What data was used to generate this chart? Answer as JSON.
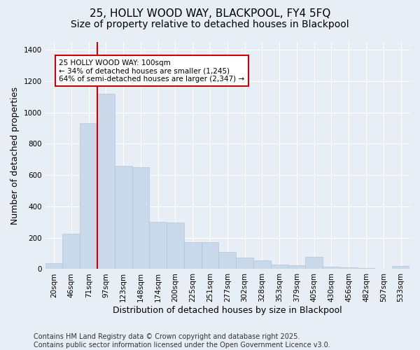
{
  "title_line1": "25, HOLLY WOOD WAY, BLACKPOOL, FY4 5FQ",
  "title_line2": "Size of property relative to detached houses in Blackpool",
  "xlabel": "Distribution of detached houses by size in Blackpool",
  "ylabel": "Number of detached properties",
  "categories": [
    "20sqm",
    "46sqm",
    "71sqm",
    "97sqm",
    "123sqm",
    "148sqm",
    "174sqm",
    "200sqm",
    "225sqm",
    "251sqm",
    "277sqm",
    "302sqm",
    "328sqm",
    "353sqm",
    "379sqm",
    "405sqm",
    "430sqm",
    "456sqm",
    "482sqm",
    "507sqm",
    "533sqm"
  ],
  "values": [
    40,
    225,
    930,
    1120,
    660,
    650,
    300,
    295,
    170,
    170,
    110,
    75,
    55,
    30,
    25,
    80,
    15,
    12,
    5,
    0,
    18
  ],
  "bar_color": "#c9d9ea",
  "bar_edge_color": "#b0c4d8",
  "vline_index": 3,
  "vline_color": "#cc0000",
  "annotation_text": "25 HOLLY WOOD WAY: 100sqm\n← 34% of detached houses are smaller (1,245)\n64% of semi-detached houses are larger (2,347) →",
  "annotation_box_color": "#ffffff",
  "annotation_box_edge_color": "#cc0000",
  "ylim": [
    0,
    1450
  ],
  "yticks": [
    0,
    200,
    400,
    600,
    800,
    1000,
    1200,
    1400
  ],
  "bg_color": "#e8eef5",
  "plot_bg_color": "#e8eef5",
  "footer": "Contains HM Land Registry data © Crown copyright and database right 2025.\nContains public sector information licensed under the Open Government Licence v3.0.",
  "title_fontsize": 11,
  "subtitle_fontsize": 10,
  "tick_fontsize": 7.5,
  "label_fontsize": 9,
  "footer_fontsize": 7,
  "bar_width": 1.0
}
